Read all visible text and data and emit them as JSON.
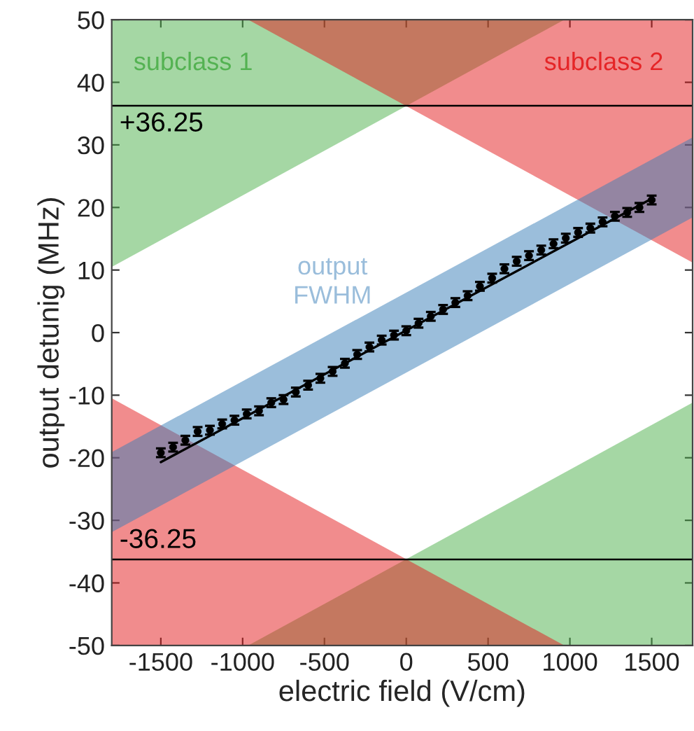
{
  "chart_data": {
    "type": "scatter",
    "xlabel": "electric field (V/cm)",
    "ylabel": "output detunig (MHz)",
    "xlim": [
      -1800,
      1750
    ],
    "ylim": [
      -50,
      50
    ],
    "xticks": [
      -1500,
      -1000,
      -500,
      0,
      500,
      1000,
      1500
    ],
    "yticks": [
      -50,
      -40,
      -30,
      -20,
      -10,
      0,
      10,
      20,
      30,
      40,
      50
    ],
    "grid": false,
    "legend": false,
    "series": [
      {
        "type": "area",
        "name": "subclass 1",
        "color": "#4caf4a",
        "x": [
          -1800,
          965,
          -1800
        ],
        "values": [
          10.5,
          50,
          50
        ]
      },
      {
        "type": "area",
        "name": "subclass 2",
        "color": "#e41a1c",
        "x": [
          -965,
          1750,
          1750
        ],
        "values": [
          50,
          11.2,
          50
        ]
      },
      {
        "type": "area",
        "color": "#4caf4a",
        "x": [
          -965,
          1750,
          1750
        ],
        "values": [
          -50,
          -11.2,
          -50
        ]
      },
      {
        "type": "area",
        "color": "#e41a1c",
        "x": [
          -1800,
          965,
          -1800
        ],
        "values": [
          -10.5,
          -50,
          -50
        ]
      },
      {
        "type": "area",
        "name": "output FWHM",
        "color": "#377eb8",
        "x": [
          -1800,
          1750,
          1750,
          -1800
        ],
        "values": [
          -19.1,
          31.2,
          18.4,
          -31.9
        ]
      },
      {
        "type": "line",
        "color": "#000000",
        "x": [
          -1500,
          1500
        ],
        "values": [
          -20.7,
          21.4
        ]
      },
      {
        "color": "#000000",
        "marker": "circle",
        "x": [
          -1500,
          -1425,
          -1350,
          -1275,
          -1200,
          -1125,
          -1050,
          -975,
          -900,
          -825,
          -750,
          -675,
          -600,
          -525,
          -450,
          -375,
          -300,
          -225,
          -150,
          -75,
          0,
          75,
          150,
          225,
          300,
          375,
          450,
          525,
          600,
          675,
          750,
          825,
          900,
          975,
          1050,
          1125,
          1200,
          1275,
          1350,
          1425,
          1500
        ],
        "values": [
          -19.2,
          -18.3,
          -17.2,
          -15.8,
          -15.6,
          -14.6,
          -14.0,
          -13.0,
          -12.5,
          -11.2,
          -10.7,
          -9.5,
          -8.4,
          -7.3,
          -6.2,
          -4.9,
          -3.5,
          -2.3,
          -1.2,
          -0.4,
          0.3,
          1.5,
          2.6,
          3.7,
          4.8,
          5.9,
          7.4,
          8.7,
          10.2,
          11.4,
          12.3,
          13.2,
          14.2,
          15.1,
          16.0,
          16.7,
          17.7,
          18.6,
          19.2,
          20.0,
          21.2
        ],
        "errors": [
          0.7,
          0.7,
          0.7,
          0.7,
          0.7,
          0.7,
          0.7,
          0.7,
          0.7,
          0.7,
          0.7,
          0.7,
          0.7,
          0.7,
          0.7,
          0.7,
          0.7,
          0.7,
          0.7,
          0.7,
          0.7,
          0.7,
          0.7,
          0.7,
          0.7,
          0.7,
          0.7,
          0.7,
          0.7,
          0.7,
          0.7,
          0.7,
          0.7,
          0.7,
          0.7,
          0.7,
          0.7,
          0.7,
          0.7,
          0.7,
          0.7
        ]
      }
    ],
    "ref_lines": [
      {
        "axis": "y",
        "value": 36.25,
        "label": "+36.25",
        "color": "#000000"
      },
      {
        "axis": "y",
        "value": -36.25,
        "label": "-36.25",
        "color": "#000000"
      }
    ]
  }
}
